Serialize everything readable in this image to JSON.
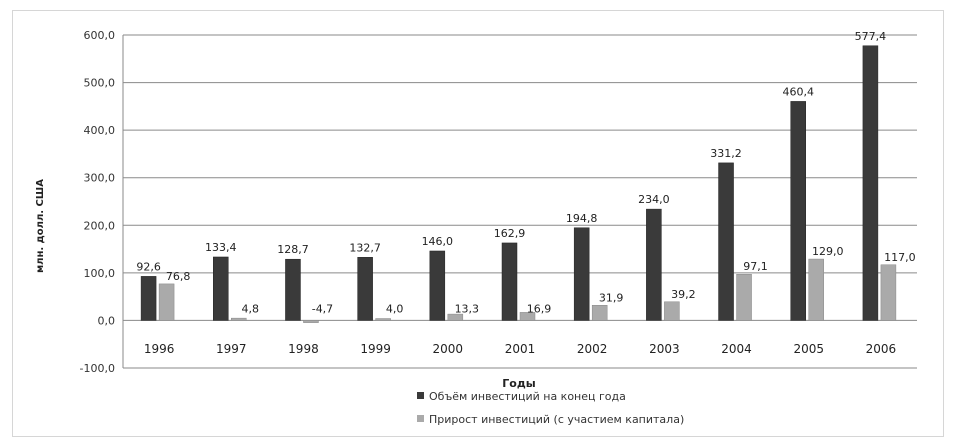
{
  "chart_data": {
    "type": "bar",
    "categories": [
      "1996",
      "1997",
      "1998",
      "1999",
      "2000",
      "2001",
      "2002",
      "2003",
      "2004",
      "2005",
      "2006"
    ],
    "series": [
      {
        "name": "Объём инвестиций на конец года",
        "color": "#3a3a3a",
        "values": [
          92.6,
          133.4,
          128.7,
          132.7,
          146.0,
          162.9,
          194.8,
          234.0,
          331.2,
          460.4,
          577.4
        ],
        "labels": [
          "92,6",
          "133,4",
          "128,7",
          "132,7",
          "146,0",
          "162,9",
          "194,8",
          "234,0",
          "331,2",
          "460,4",
          "577,4"
        ]
      },
      {
        "name": "Прирост инвестиций (с участием капитала)",
        "color": "#aaaaaa",
        "values": [
          76.8,
          4.8,
          -4.7,
          4.0,
          13.3,
          16.9,
          31.9,
          39.2,
          97.1,
          129.0,
          117.0
        ],
        "labels": [
          "76,8",
          "4,8",
          "-4,7",
          "4,0",
          "13,3",
          "16,9",
          "31,9",
          "39,2",
          "97,1",
          "129,0",
          "117,0"
        ]
      }
    ],
    "ylabel": "млн. долл. США",
    "xlabel": "Годы",
    "ylim": [
      -100,
      600
    ],
    "yticks": [
      "600,0",
      "500,0",
      "400,0",
      "300,0",
      "200,0",
      "100,0",
      "0,0",
      "-100,0"
    ],
    "grid": true,
    "legend": "bottom"
  }
}
